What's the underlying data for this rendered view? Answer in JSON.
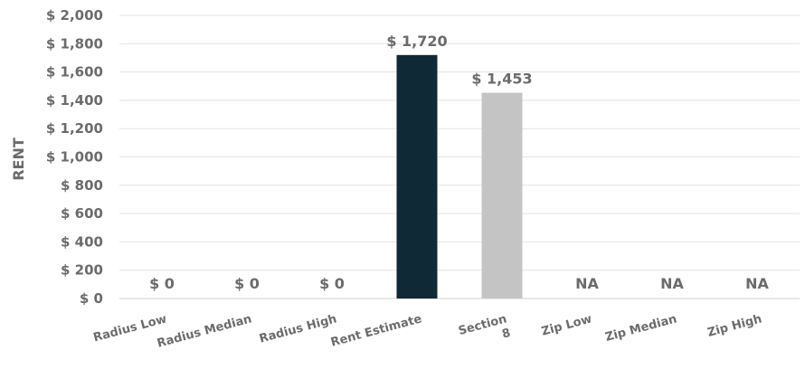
{
  "chart_data": {
    "type": "bar",
    "ylabel": "RENT",
    "xlabel": "",
    "ylim": [
      0,
      2000
    ],
    "yticks": [
      "$ 0",
      "$ 200",
      "$ 400",
      "$ 600",
      "$ 800",
      "$ 1,000",
      "$ 1,200",
      "$ 1,400",
      "$ 1,600",
      "$ 1,800",
      "$ 2,000"
    ],
    "grid": true,
    "categories": [
      "Radius Low",
      "Radius Median",
      "Radius High",
      "Rent Estimate",
      "Section 8",
      "Zip Low",
      "Zip Median",
      "Zip High"
    ],
    "category_lines": [
      [
        "Radius Low"
      ],
      [
        "Radius Median"
      ],
      [
        "Radius High"
      ],
      [
        "Rent Estimate"
      ],
      [
        "Section",
        "8"
      ],
      [
        "Zip Low"
      ],
      [
        "Zip Median"
      ],
      [
        "Zip High"
      ]
    ],
    "values": [
      0,
      0,
      0,
      1720,
      1453,
      null,
      null,
      null
    ],
    "data_labels": [
      "$ 0",
      "$ 0",
      "$ 0",
      "$ 1,720",
      "$ 1,453",
      "NA",
      "NA",
      "NA"
    ],
    "colors": [
      "#0f2a36",
      "#0f2a36",
      "#0f2a36",
      "#0f2a36",
      "#c4c4c4",
      "#c4c4c4",
      "#c4c4c4",
      "#c4c4c4"
    ]
  }
}
